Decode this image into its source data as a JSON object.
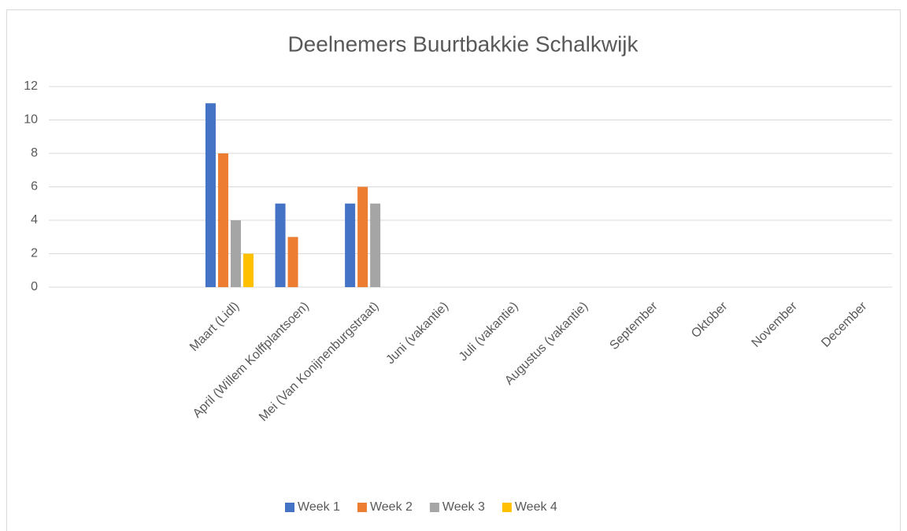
{
  "chart_data": {
    "type": "bar",
    "title": "Deelnemers Buurtbakkie Schalkwijk",
    "categories": [
      null,
      null,
      "Maart (Lidl)",
      "April (Willem Kolffplantsoen)",
      "Mei (Van Konijnenburgstraat)",
      "Juni (vakantie)",
      "Juli (vakantie)",
      "Augustus (vakantie)",
      "September",
      "Oktober",
      "November",
      "December"
    ],
    "series": [
      {
        "name": "Week 1",
        "color": "#4472c4",
        "values": [
          null,
          null,
          11,
          5,
          5,
          null,
          null,
          null,
          null,
          null,
          null,
          null
        ]
      },
      {
        "name": "Week 2",
        "color": "#ed7d31",
        "values": [
          null,
          null,
          8,
          3,
          6,
          null,
          null,
          null,
          null,
          null,
          null,
          null
        ]
      },
      {
        "name": "Week 3",
        "color": "#a5a5a5",
        "values": [
          null,
          null,
          4,
          null,
          5,
          null,
          null,
          null,
          null,
          null,
          null,
          null
        ]
      },
      {
        "name": "Week 4",
        "color": "#ffc000",
        "values": [
          null,
          null,
          2,
          null,
          null,
          null,
          null,
          null,
          null,
          null,
          null,
          null
        ]
      }
    ],
    "ylim": [
      0,
      12
    ],
    "yticks": [
      0,
      2,
      4,
      6,
      8,
      10,
      12
    ],
    "grid": true,
    "legend": "bottom"
  }
}
